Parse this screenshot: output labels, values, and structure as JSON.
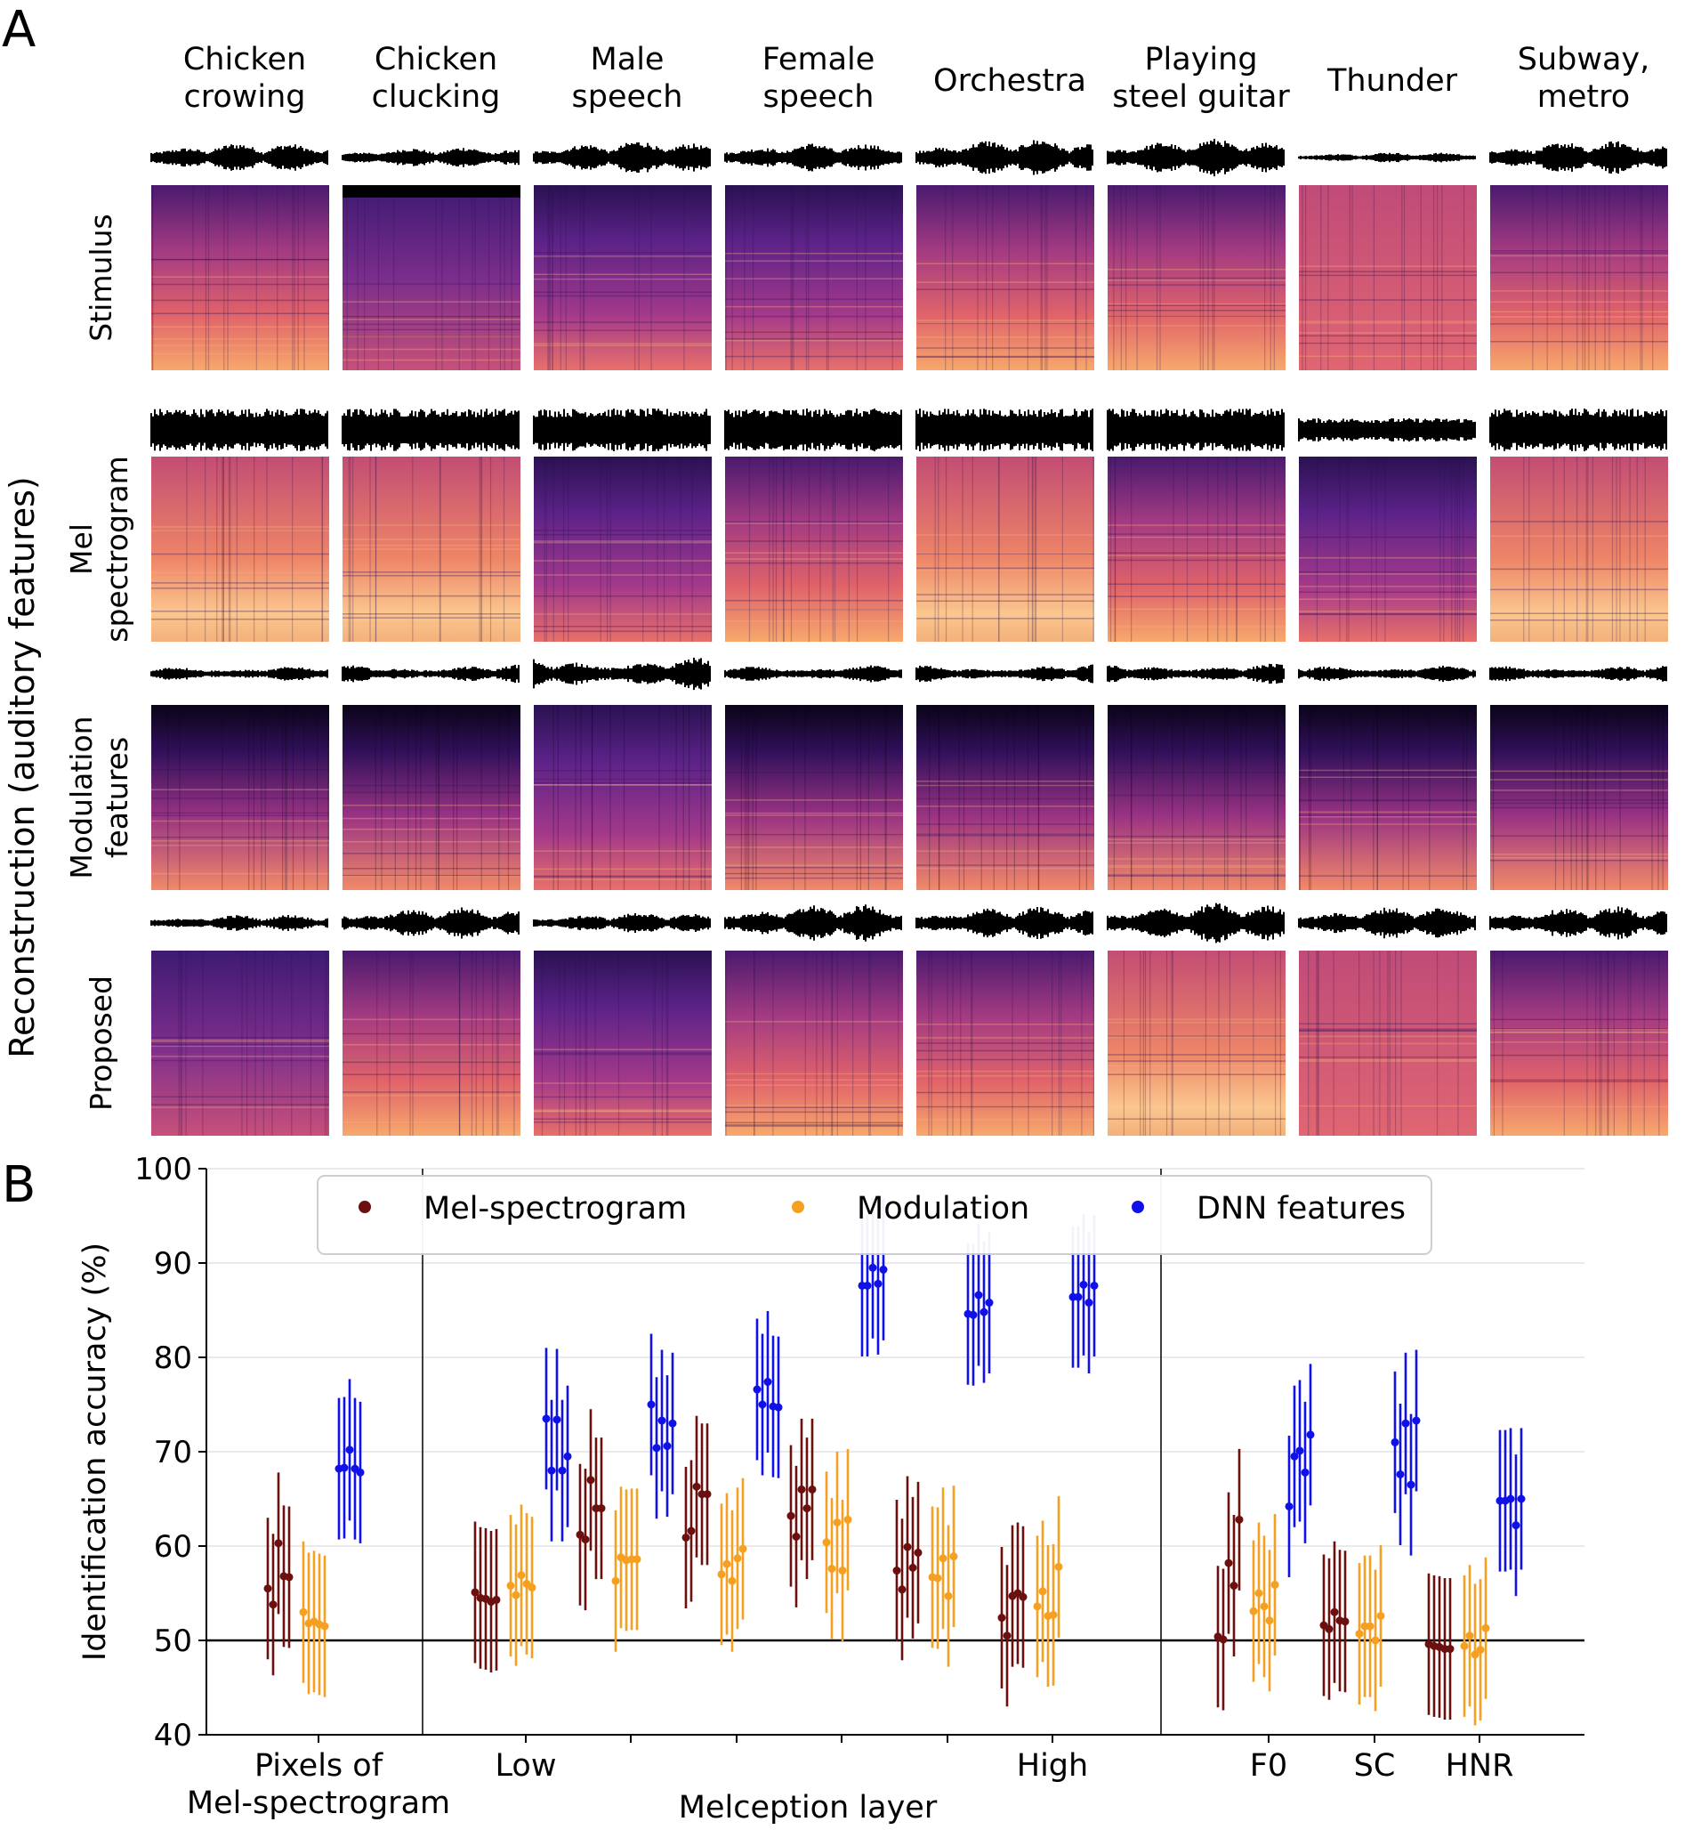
{
  "panel_a": {
    "label": "A",
    "columns": [
      {
        "line1": "Chicken",
        "line2": "crowing"
      },
      {
        "line1": "Chicken",
        "line2": "clucking"
      },
      {
        "line1": "Male",
        "line2": "speech"
      },
      {
        "line1": "Female",
        "line2": "speech"
      },
      {
        "line1": "Orchestra",
        "line2": ""
      },
      {
        "line1": "Playing",
        "line2": "steel guitar"
      },
      {
        "line1": "Thunder",
        "line2": ""
      },
      {
        "line1": "Subway,",
        "line2": "metro"
      }
    ],
    "rows": [
      {
        "line1": "Stimulus",
        "line2": ""
      },
      {
        "line1": "Mel",
        "line2": "spectrogram"
      },
      {
        "line1": "Modulation",
        "line2": "features"
      },
      {
        "line1": "Proposed",
        "line2": ""
      }
    ],
    "group_label": "Reconstruction (auditory features)"
  },
  "panel_b": {
    "label": "B"
  },
  "chart_data": {
    "type": "scatter",
    "title": "",
    "xlabel": "Melception layer",
    "ylabel": "Identification accuracy (%)",
    "ylim": [
      40,
      100
    ],
    "yticks": [
      "40",
      "50",
      "60",
      "70",
      "80",
      "90",
      "100"
    ],
    "grid": "horizontal",
    "reference_line": 50,
    "legend_position": "top",
    "legend": [
      "Mel-spectrogram",
      "Modulation",
      "DNN features"
    ],
    "colors": {
      "Mel-spectrogram": "#6b0f0f",
      "Modulation": "#f5a020",
      "DNN features": "#1010e8"
    },
    "xtick_labels": {
      "pixels_line1": "Pixels of",
      "pixels_line2": "Mel-spectrogram",
      "low": "Low",
      "high": "High",
      "f0": "F0",
      "sc": "SC",
      "hnr": "HNR"
    },
    "error_half_width_approx": 7.5,
    "groups": [
      {
        "name": "Pixels of Mel-spectrogram",
        "mel": [
          55.5,
          53.8,
          60.3,
          56.8,
          56.7
        ],
        "mod": [
          53.0,
          51.8,
          52.0,
          51.7,
          51.5
        ],
        "dnn": [
          68.2,
          68.3,
          70.2,
          68.2,
          67.8
        ]
      },
      {
        "name": "Melception layer 1 (Low)",
        "mel": [
          55.1,
          54.5,
          54.4,
          54.1,
          54.3
        ],
        "mod": [
          55.8,
          54.8,
          56.9,
          56.0,
          55.6
        ],
        "dnn": [
          73.5,
          68.0,
          73.4,
          68.0,
          69.5
        ]
      },
      {
        "name": "Melception layer 2",
        "mel": [
          61.2,
          60.7,
          67.0,
          64.0,
          64.0
        ],
        "mod": [
          56.3,
          58.8,
          58.5,
          58.6,
          58.6
        ],
        "dnn": [
          75.0,
          70.4,
          73.3,
          70.6,
          73.0
        ]
      },
      {
        "name": "Melception layer 3",
        "mel": [
          60.9,
          61.6,
          66.3,
          65.5,
          65.5
        ],
        "mod": [
          57.0,
          58.1,
          56.3,
          58.7,
          59.7
        ],
        "dnn": [
          76.6,
          75.0,
          77.4,
          74.8,
          74.7
        ]
      },
      {
        "name": "Melception layer 4",
        "mel": [
          63.2,
          61.0,
          66.0,
          64.0,
          66.0
        ],
        "mod": [
          60.4,
          57.6,
          62.5,
          57.4,
          62.8
        ],
        "dnn": [
          87.6,
          87.6,
          89.5,
          87.8,
          89.3
        ]
      },
      {
        "name": "Melception layer 5",
        "mel": [
          57.4,
          55.4,
          59.9,
          57.7,
          59.3
        ],
        "mod": [
          56.7,
          56.6,
          58.7,
          54.7,
          58.9
        ],
        "dnn": [
          84.6,
          84.5,
          86.6,
          84.8,
          85.8
        ]
      },
      {
        "name": "Melception layer 6 (High)",
        "mel": [
          52.4,
          50.5,
          54.7,
          55.0,
          54.6
        ],
        "mod": [
          53.6,
          55.2,
          52.6,
          52.7,
          57.8
        ],
        "dnn": [
          86.4,
          86.4,
          87.7,
          85.8,
          87.6
        ]
      },
      {
        "name": "F0",
        "mel": [
          50.4,
          50.1,
          58.2,
          55.8,
          62.8
        ],
        "mod": [
          53.1,
          55.0,
          53.6,
          52.1,
          55.9
        ],
        "dnn": [
          64.2,
          69.5,
          70.1,
          67.8,
          71.8
        ]
      },
      {
        "name": "SC",
        "mel": [
          51.6,
          51.2,
          53.0,
          52.1,
          52.0
        ],
        "mod": [
          50.7,
          51.5,
          51.5,
          50.0,
          52.6
        ],
        "dnn": [
          71.0,
          67.6,
          73.0,
          66.5,
          73.3
        ]
      },
      {
        "name": "HNR",
        "mel": [
          49.6,
          49.4,
          49.3,
          49.1,
          49.1
        ],
        "mod": [
          49.4,
          50.5,
          48.5,
          49.0,
          51.3
        ],
        "dnn": [
          64.8,
          64.8,
          65.0,
          62.2,
          65.0
        ]
      }
    ]
  }
}
